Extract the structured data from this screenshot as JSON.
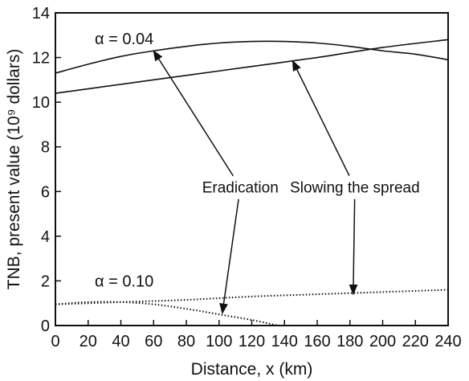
{
  "chart_data": {
    "type": "line",
    "xlabel": "Distance, x (km)",
    "ylabel": "TNB, present value (10⁹ dollars)",
    "xlim": [
      0,
      240
    ],
    "ylim": [
      0,
      14
    ],
    "xticks": [
      0,
      20,
      40,
      60,
      80,
      100,
      120,
      140,
      160,
      180,
      200,
      220,
      240
    ],
    "yticks": [
      0,
      2,
      4,
      6,
      8,
      10,
      12,
      14
    ],
    "grid": false,
    "series": [
      {
        "name": "Eradication, α = 0.04",
        "style": "solid",
        "x": [
          0,
          20,
          40,
          60,
          80,
          100,
          120,
          140,
          160,
          180,
          200,
          220,
          240
        ],
        "y": [
          11.3,
          11.7,
          12.05,
          12.3,
          12.5,
          12.65,
          12.72,
          12.72,
          12.65,
          12.5,
          12.3,
          12.15,
          11.9
        ]
      },
      {
        "name": "Slowing the spread, α = 0.04",
        "style": "solid",
        "x": [
          0,
          40,
          80,
          120,
          160,
          200,
          240
        ],
        "y": [
          10.4,
          10.8,
          11.2,
          11.6,
          12.0,
          12.45,
          12.8
        ]
      },
      {
        "name": "Eradication, α = 0.10",
        "style": "dotted",
        "x": [
          0,
          20,
          40,
          60,
          80,
          100,
          120,
          135,
          140
        ],
        "y": [
          0.95,
          1.05,
          1.05,
          0.95,
          0.75,
          0.5,
          0.25,
          0.02,
          0
        ]
      },
      {
        "name": "Slowing the spread, α = 0.10",
        "style": "dotted",
        "x": [
          0,
          40,
          80,
          120,
          160,
          200,
          240
        ],
        "y": [
          0.95,
          1.05,
          1.15,
          1.3,
          1.4,
          1.5,
          1.6
        ]
      }
    ],
    "curve_labels": [
      {
        "text": "α = 0.04",
        "x": 60,
        "y": 12.6
      },
      {
        "text": "α = 0.10",
        "x": 60,
        "y": 1.75
      }
    ],
    "annotations": [
      {
        "text": "Eradication",
        "x": 113,
        "y": 6.2,
        "arrows": [
          {
            "to_x": 60,
            "to_y": 12.3
          },
          {
            "to_x": 102,
            "to_y": 0.55
          }
        ]
      },
      {
        "text": "Slowing the spread",
        "x": 183,
        "y": 6.2,
        "arrows": [
          {
            "to_x": 145,
            "to_y": 11.85
          },
          {
            "to_x": 182,
            "to_y": 1.4
          }
        ]
      }
    ]
  }
}
